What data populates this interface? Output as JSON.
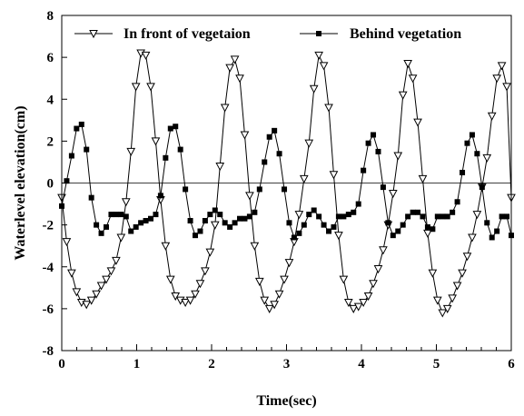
{
  "chart_data": {
    "type": "line",
    "xlabel": "Time(sec)",
    "ylabel": "Waterlevel elevation(cm)",
    "xlim": [
      0,
      6
    ],
    "ylim": [
      -8,
      8
    ],
    "xticks": [
      0,
      1,
      2,
      3,
      4,
      5,
      6
    ],
    "yticks": [
      -8,
      -6,
      -4,
      -2,
      0,
      2,
      4,
      6,
      8
    ],
    "grid": false,
    "zero_line": true,
    "legend_position": "top",
    "series": [
      {
        "name": "In front of vegetaion",
        "marker": "triangle-down-open",
        "color": "#000000",
        "x": [
          0.0,
          0.066,
          0.132,
          0.198,
          0.264,
          0.33,
          0.396,
          0.462,
          0.528,
          0.594,
          0.66,
          0.726,
          0.792,
          0.858,
          0.924,
          0.99,
          1.056,
          1.122,
          1.188,
          1.254,
          1.32,
          1.386,
          1.452,
          1.518,
          1.584,
          1.65,
          1.716,
          1.782,
          1.848,
          1.914,
          1.98,
          2.046,
          2.112,
          2.178,
          2.244,
          2.31,
          2.376,
          2.442,
          2.508,
          2.574,
          2.64,
          2.706,
          2.772,
          2.838,
          2.904,
          2.97,
          3.036,
          3.102,
          3.168,
          3.234,
          3.3,
          3.366,
          3.432,
          3.498,
          3.564,
          3.63,
          3.696,
          3.762,
          3.828,
          3.894,
          3.96,
          4.026,
          4.092,
          4.158,
          4.224,
          4.29,
          4.356,
          4.422,
          4.488,
          4.554,
          4.62,
          4.686,
          4.752,
          4.818,
          4.884,
          4.95,
          5.016,
          5.082,
          5.148,
          5.214,
          5.28,
          5.346,
          5.412,
          5.478,
          5.544,
          5.61,
          5.676,
          5.742,
          5.808,
          5.874,
          5.94,
          6.0
        ],
        "values": [
          -0.7,
          -2.8,
          -4.3,
          -5.2,
          -5.7,
          -5.8,
          -5.6,
          -5.3,
          -4.9,
          -4.6,
          -4.2,
          -3.7,
          -2.6,
          -0.9,
          1.5,
          4.6,
          6.2,
          6.1,
          4.6,
          2.0,
          -0.8,
          -3.0,
          -4.6,
          -5.4,
          -5.6,
          -5.7,
          -5.6,
          -5.3,
          -4.8,
          -4.2,
          -3.3,
          -2.0,
          0.8,
          3.6,
          5.5,
          5.9,
          5.0,
          2.3,
          -0.6,
          -3.0,
          -4.7,
          -5.6,
          -6.0,
          -5.8,
          -5.3,
          -4.6,
          -3.8,
          -2.8,
          -1.5,
          0.2,
          1.9,
          4.5,
          6.1,
          5.6,
          3.6,
          0.4,
          -2.5,
          -4.6,
          -5.7,
          -6.0,
          -5.9,
          -5.7,
          -5.4,
          -4.8,
          -4.1,
          -3.2,
          -2.0,
          -0.5,
          1.3,
          4.2,
          5.7,
          5.0,
          2.9,
          0.2,
          -2.4,
          -4.3,
          -5.6,
          -6.2,
          -6.0,
          -5.5,
          -4.9,
          -4.3,
          -3.5,
          -2.6,
          -1.5,
          -0.2,
          1.2,
          3.2,
          5.0,
          5.6,
          4.6,
          -0.7
        ]
      },
      {
        "name": "Behind vegetation",
        "marker": "square-filled",
        "color": "#000000",
        "x": [
          0.0,
          0.066,
          0.132,
          0.198,
          0.264,
          0.33,
          0.396,
          0.462,
          0.528,
          0.594,
          0.66,
          0.726,
          0.792,
          0.858,
          0.924,
          0.99,
          1.056,
          1.122,
          1.188,
          1.254,
          1.32,
          1.386,
          1.452,
          1.518,
          1.584,
          1.65,
          1.716,
          1.782,
          1.848,
          1.914,
          1.98,
          2.046,
          2.112,
          2.178,
          2.244,
          2.31,
          2.376,
          2.442,
          2.508,
          2.574,
          2.64,
          2.706,
          2.772,
          2.838,
          2.904,
          2.97,
          3.036,
          3.102,
          3.168,
          3.234,
          3.3,
          3.366,
          3.432,
          3.498,
          3.564,
          3.63,
          3.696,
          3.762,
          3.828,
          3.894,
          3.96,
          4.026,
          4.092,
          4.158,
          4.224,
          4.29,
          4.356,
          4.422,
          4.488,
          4.554,
          4.62,
          4.686,
          4.752,
          4.818,
          4.884,
          4.95,
          5.016,
          5.082,
          5.148,
          5.214,
          5.28,
          5.346,
          5.412,
          5.478,
          5.544,
          5.61,
          5.676,
          5.742,
          5.808,
          5.874,
          5.94,
          6.0
        ],
        "values": [
          -1.1,
          0.1,
          1.3,
          2.6,
          2.8,
          1.6,
          -0.7,
          -2.0,
          -2.4,
          -2.1,
          -1.5,
          -1.5,
          -1.5,
          -1.6,
          -2.3,
          -2.1,
          -1.9,
          -1.8,
          -1.7,
          -1.5,
          -0.6,
          1.2,
          2.6,
          2.7,
          1.6,
          -0.3,
          -1.8,
          -2.5,
          -2.3,
          -1.8,
          -1.5,
          -1.3,
          -1.5,
          -1.9,
          -2.1,
          -1.9,
          -1.7,
          -1.7,
          -1.6,
          -1.4,
          -0.3,
          1.0,
          2.2,
          2.5,
          1.4,
          -0.3,
          -1.9,
          -2.6,
          -2.4,
          -2.0,
          -1.5,
          -1.3,
          -1.6,
          -2.0,
          -2.3,
          -2.1,
          -1.6,
          -1.6,
          -1.5,
          -1.4,
          -1.0,
          0.6,
          1.9,
          2.3,
          1.5,
          -0.2,
          -1.9,
          -2.5,
          -2.3,
          -2.0,
          -1.6,
          -1.4,
          -1.4,
          -1.6,
          -2.1,
          -2.2,
          -1.6,
          -1.6,
          -1.6,
          -1.4,
          -0.9,
          0.5,
          1.9,
          2.3,
          1.4,
          -0.2,
          -1.9,
          -2.6,
          -2.3,
          -1.6,
          -1.6,
          -2.5
        ]
      }
    ]
  }
}
